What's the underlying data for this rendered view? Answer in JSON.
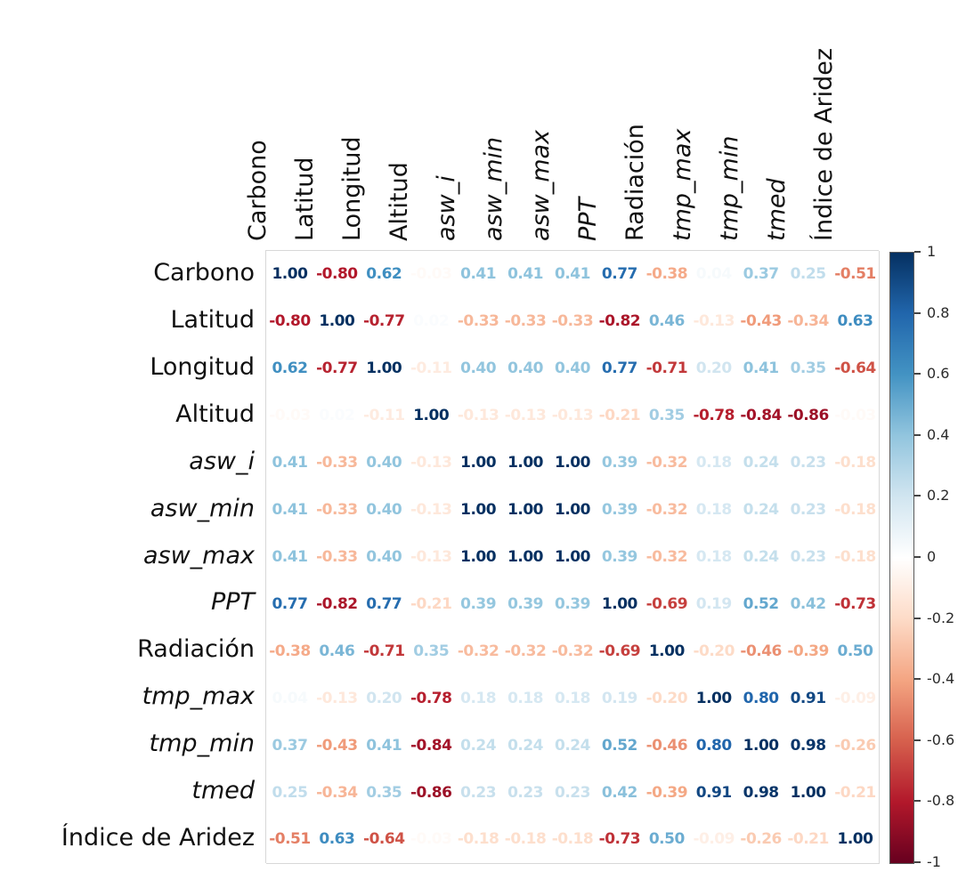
{
  "chart_data": {
    "type": "heatmap",
    "subtype": "correlation-matrix-numbers",
    "title": "",
    "variables": [
      {
        "name": "Carbono",
        "italic": false
      },
      {
        "name": "Latitud",
        "italic": false
      },
      {
        "name": "Longitud",
        "italic": false
      },
      {
        "name": "Altitud",
        "italic": false
      },
      {
        "name": "asw_i",
        "italic": true
      },
      {
        "name": "asw_min",
        "italic": true
      },
      {
        "name": "asw_max",
        "italic": true
      },
      {
        "name": "PPT",
        "italic": true
      },
      {
        "name": "Radiación",
        "italic": false
      },
      {
        "name": "tmp_max",
        "italic": true
      },
      {
        "name": "tmp_min",
        "italic": true
      },
      {
        "name": "tmed",
        "italic": true
      },
      {
        "name": "Índice de Aridez",
        "italic": false
      }
    ],
    "matrix": [
      [
        1.0,
        -0.8,
        0.62,
        -0.03,
        0.41,
        0.41,
        0.41,
        0.77,
        -0.38,
        0.04,
        0.37,
        0.25,
        -0.51
      ],
      [
        -0.8,
        1.0,
        -0.77,
        0.02,
        -0.33,
        -0.33,
        -0.33,
        -0.82,
        0.46,
        -0.13,
        -0.43,
        -0.34,
        0.63
      ],
      [
        0.62,
        -0.77,
        1.0,
        -0.11,
        0.4,
        0.4,
        0.4,
        0.77,
        -0.71,
        0.2,
        0.41,
        0.35,
        -0.64
      ],
      [
        -0.03,
        0.02,
        -0.11,
        1.0,
        -0.13,
        -0.13,
        -0.13,
        -0.21,
        0.35,
        -0.78,
        -0.84,
        -0.86,
        -0.03
      ],
      [
        0.41,
        -0.33,
        0.4,
        -0.13,
        1.0,
        1.0,
        1.0,
        0.39,
        -0.32,
        0.18,
        0.24,
        0.23,
        -0.18
      ],
      [
        0.41,
        -0.33,
        0.4,
        -0.13,
        1.0,
        1.0,
        1.0,
        0.39,
        -0.32,
        0.18,
        0.24,
        0.23,
        -0.18
      ],
      [
        0.41,
        -0.33,
        0.4,
        -0.13,
        1.0,
        1.0,
        1.0,
        0.39,
        -0.32,
        0.18,
        0.24,
        0.23,
        -0.18
      ],
      [
        0.77,
        -0.82,
        0.77,
        -0.21,
        0.39,
        0.39,
        0.39,
        1.0,
        -0.69,
        0.19,
        0.52,
        0.42,
        -0.73
      ],
      [
        -0.38,
        0.46,
        -0.71,
        0.35,
        -0.32,
        -0.32,
        -0.32,
        -0.69,
        1.0,
        -0.2,
        -0.46,
        -0.39,
        0.5
      ],
      [
        0.04,
        -0.13,
        0.2,
        -0.78,
        0.18,
        0.18,
        0.18,
        0.19,
        -0.2,
        1.0,
        0.8,
        0.91,
        -0.09
      ],
      [
        0.37,
        -0.43,
        0.41,
        -0.84,
        0.24,
        0.24,
        0.24,
        0.52,
        -0.46,
        0.8,
        1.0,
        0.98,
        -0.26
      ],
      [
        0.25,
        -0.34,
        0.35,
        -0.86,
        0.23,
        0.23,
        0.23,
        0.42,
        -0.39,
        0.91,
        0.98,
        1.0,
        -0.21
      ],
      [
        -0.51,
        0.63,
        -0.64,
        -0.03,
        -0.18,
        -0.18,
        -0.18,
        -0.73,
        0.5,
        -0.09,
        -0.26,
        -0.21,
        1.0
      ]
    ],
    "value_format": "2dp",
    "grid": true,
    "colorbar": {
      "position": "right",
      "min": -1,
      "max": 1,
      "tick_labels": [
        "1",
        "0.8",
        "0.6",
        "0.4",
        "0.2",
        "0",
        "-0.2",
        "-0.4",
        "-0.6",
        "-0.8",
        "-1"
      ],
      "palette": [
        {
          "v": 1.0,
          "color": "#053061"
        },
        {
          "v": 0.8,
          "color": "#2166AC"
        },
        {
          "v": 0.6,
          "color": "#4393C3"
        },
        {
          "v": 0.4,
          "color": "#92C5DE"
        },
        {
          "v": 0.2,
          "color": "#D1E5F0"
        },
        {
          "v": 0.0,
          "color": "#FFFFFF"
        },
        {
          "v": -0.2,
          "color": "#FDDBC7"
        },
        {
          "v": -0.4,
          "color": "#F4A582"
        },
        {
          "v": -0.6,
          "color": "#D6604D"
        },
        {
          "v": -0.8,
          "color": "#B2182B"
        },
        {
          "v": -1.0,
          "color": "#67001F"
        }
      ]
    }
  }
}
